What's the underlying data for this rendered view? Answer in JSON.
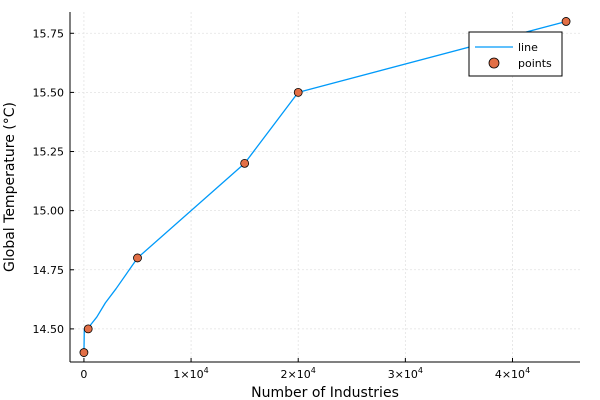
{
  "chart_data": {
    "type": "line",
    "xlabel": "Number of Industries",
    "ylabel": "Global Temperature (°C)",
    "x": [
      3,
      35,
      500,
      1200,
      2000,
      3000,
      5000,
      15000,
      20000,
      45000
    ],
    "series": [
      {
        "name": "line",
        "style": "line",
        "color": "#009AF9",
        "values": [
          14.4,
          14.5,
          14.51,
          14.55,
          14.61,
          14.67,
          14.8,
          15.2,
          15.5,
          15.8
        ]
      },
      {
        "name": "points",
        "style": "scatter",
        "color": "#E26F46",
        "x": [
          0,
          400,
          5000,
          15000,
          20000,
          45000
        ],
        "values": [
          14.4,
          14.5,
          14.8,
          15.2,
          15.5,
          15.8
        ]
      }
    ],
    "xlim": [
      -1300,
      46300
    ],
    "ylim": [
      14.36,
      15.84
    ],
    "x_ticks": [
      {
        "value": 0,
        "label": "0",
        "base": "",
        "exp": ""
      },
      {
        "value": 10000,
        "label": "",
        "base": "1×10",
        "exp": "4"
      },
      {
        "value": 20000,
        "label": "",
        "base": "2×10",
        "exp": "4"
      },
      {
        "value": 30000,
        "label": "",
        "base": "3×10",
        "exp": "4"
      },
      {
        "value": 40000,
        "label": "",
        "base": "4×10",
        "exp": "4"
      }
    ],
    "y_ticks": [
      {
        "value": 14.5,
        "label": "14.50"
      },
      {
        "value": 14.75,
        "label": "14.75"
      },
      {
        "value": 15.0,
        "label": "15.00"
      },
      {
        "value": 15.25,
        "label": "15.25"
      },
      {
        "value": 15.5,
        "label": "15.50"
      },
      {
        "value": 15.75,
        "label": "15.75"
      }
    ],
    "grid": true,
    "legend_position": "top-right"
  }
}
